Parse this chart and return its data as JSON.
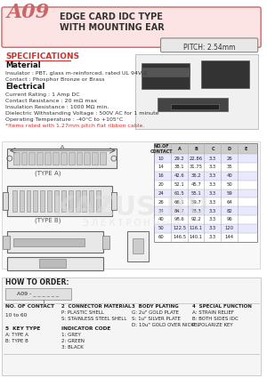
{
  "title_box_color": "#fce4e4",
  "title_border_color": "#cc6666",
  "part_number": "A09",
  "title_line1": "EDGE CARD IDC TYPE",
  "title_line2": "WITH MOUNTING EAR",
  "pitch_label": "PITCH: 2.54mm",
  "pitch_bg": "#e8e8e8",
  "spec_title": "SPECIFICATIONS",
  "spec_color": "#cc3333",
  "material_title": "Material",
  "material_lines": [
    "Insulator : PBT, glass m-reinforced, rated UL 94V-2",
    "Contact : Phosphor Bronze or Brass"
  ],
  "electrical_title": "Electrical",
  "electrical_lines": [
    "Current Rating : 1 Amp DC",
    "Contact Resistance : 20 mΩ max",
    "Insulation Resistance : 1000 MΩ min.",
    "Dielectric Withstanding Voltage : 500V AC for 1 minute",
    "Operating Temperature : -40°C to +105°C",
    "*Items rated with 1.27mm pitch flat ribbon cable."
  ],
  "how_to_order": "HOW TO ORDER:",
  "order_bg": "#dddddd",
  "table_header": [
    "NO. OF CONTACT",
    "2  CONNECTOR MATERIAL",
    "3  BODY PLATING",
    "4  SPECIAL FUNCTION",
    "5  KEY TYPE",
    "INDICATOR CODE"
  ],
  "bg_color": "#ffffff",
  "watermark": "KAZUS.RU",
  "watermark_color": "#dddddd"
}
